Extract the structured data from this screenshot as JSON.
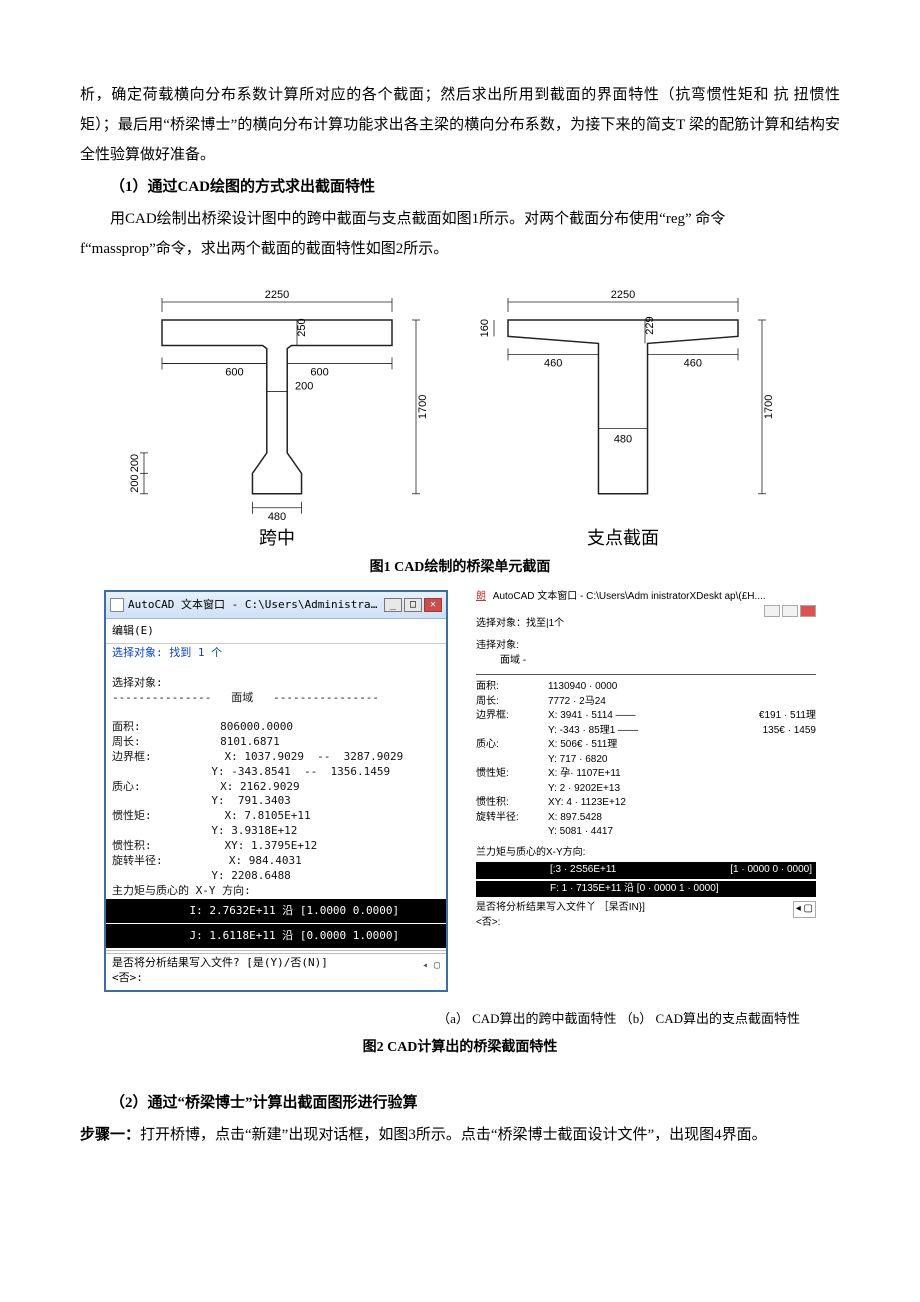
{
  "para1": "析，确定荷载横向分布系数计算所对应的各个截面；然后求出所用到截面的界面特性（抗弯惯性矩和 抗 扭惯性矩）；最后用“桥梁博士”的横向分布计算功能求出各主梁的横向分布系数，为接下来的简支T 梁的配筋计算和结构安全性验算做好准备。",
  "sec1_title": "（1）通过CAD绘图的方式求出截面特性",
  "para2a": "用CAD绘制出桥梁设计图中的跨中截面与支点截面如图1所示。对两个截面分布使用“reg” 命令",
  "para2b": "f“massprop”命令，求出两个截面的截面特性如图2所示。",
  "figure1": {
    "left": {
      "w_top": "2250",
      "h_flange": "250",
      "w_side1": "600",
      "w_side2": "600",
      "web": "200",
      "h_total": "1700",
      "h_taper1": "200",
      "h_taper2": "200",
      "w_bot": "480",
      "label": "跨中"
    },
    "right": {
      "w_top": "2250",
      "h_flange_top": "160",
      "h_flange": "229",
      "w_side1": "460",
      "w_side2": "460",
      "web": "480",
      "h_total": "1700",
      "label": "支点截面"
    },
    "style": {
      "stroke": "#222222",
      "dim_stroke": "#222222",
      "text_fontsize": 11,
      "label_fontsize": 18,
      "stroke_width": 1.5,
      "dim_stroke_width": 0.8
    }
  },
  "figcap1": "图1 CAD绘制的桥梁单元截面",
  "cadwinA": {
    "title": "AutoCAD 文本窗口 - C:\\Users\\Administrator\\Desktop\\截面...",
    "menu": "编辑(E)",
    "sel_found": "选择对象: 找到 1 个",
    "sel": "选择对象:",
    "region_hdr": "---------------   面域   ----------------",
    "rows": [
      [
        "面积:",
        "806000.0000"
      ],
      [
        "周长:",
        "8101.6871"
      ],
      [
        "边界框:",
        "X: 1037.9029  --  3287.9029"
      ],
      [
        "",
        "Y: -343.8541  --  1356.1459"
      ],
      [
        "质心:",
        "X: 2162.9029"
      ],
      [
        "",
        "Y:  791.3403"
      ],
      [
        "惯性矩:",
        "X: 7.8105E+11"
      ],
      [
        "",
        "Y: 3.9318E+12"
      ],
      [
        "惯性积:",
        "XY: 1.3795E+12"
      ],
      [
        "旋转半径:",
        "X: 984.4031"
      ],
      [
        "",
        "Y: 2208.6488"
      ]
    ],
    "principal_hdr": "主力矩与质心的 X-Y 方向:",
    "principal1": "I: 2.7632E+11 沿 [1.0000 0.0000]",
    "principal2": "J: 1.6118E+11 沿 [0.0000 1.0000]",
    "footer1": "是否将分析结果写入文件? [是(Y)/否(N)]",
    "footer2": "<否>:"
  },
  "cadwinB": {
    "title_prefix": "朗",
    "title": "AutoCAD 文本窗口 - C:\\Users\\Adm inistratorXDeskt ap\\(£H....",
    "sel_found": "选择对象：找至|1个",
    "sel": "违择对象:",
    "region_hdr": "面域  -",
    "rows": [
      [
        "面积:",
        "1130940 · 0000",
        ""
      ],
      [
        "周长:",
        "7772 · 2马24",
        ""
      ],
      [
        "边界框:",
        "X: 3941 · 5114 ——",
        "€191 · 511理"
      ],
      [
        "",
        "Y: -343 · 85理1 ——",
        "135€ · 1459"
      ],
      [
        "质心:",
        "X: 506€ · 511理",
        ""
      ],
      [
        "",
        "Y: 717 · 6820",
        ""
      ],
      [
        "惯性矩:",
        "X: 孕· 1107E+11",
        ""
      ],
      [
        "",
        "Y: 2 · 9202E+13",
        ""
      ],
      [
        "惯性积:",
        "XY: 4 · 1123E+12",
        ""
      ],
      [
        "旋转半径:",
        "X: 897.5428",
        ""
      ],
      [
        "",
        "Y: 5081 · 4417",
        ""
      ]
    ],
    "principal_hdr": "兰力矩与质心的X-Y方向:",
    "principal1a": "[:3 · 2S56E+11",
    "principal1b": "[1 · 0000 0 · 0000]",
    "principal2": "F: 1 · 7135E+11 沿  [0 · 0000 1 · 0000]",
    "footer1": "是否将分析结果写入文件丫 ［杲否IN}]",
    "footer2": "<否>:"
  },
  "subcap_ab": "（a） CAD算出的跨中截面特性   （b） CAD算出的支点截面特性",
  "figcap2": "图2 CAD计算出的桥梁截面特性",
  "sec2_title": "（2）通过“桥梁博士”计算出截面图形进行验算",
  "step1_label": "步骤一：",
  "step1_text": "打开桥博，点击“新建”出现对话框，如图3所示。点击“桥梁博士截面设计文件”，出现图4界面。"
}
